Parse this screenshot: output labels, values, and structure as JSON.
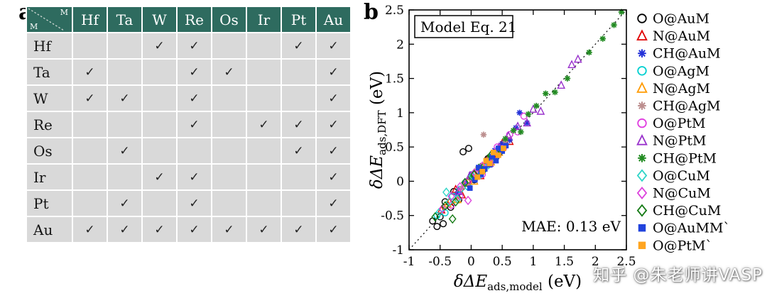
{
  "panels": {
    "a_label": "a",
    "b_label": "b"
  },
  "table": {
    "corner": {
      "top": "M",
      "bottom": "M"
    },
    "columns": [
      "Hf",
      "Ta",
      "W",
      "Re",
      "Os",
      "Ir",
      "Pt",
      "Au"
    ],
    "check_glyph": "✓",
    "header_bg": "#2e6b5f",
    "cell_bg": "#d9d9d9",
    "rows": [
      {
        "label": "Hf",
        "checks": [
          0,
          0,
          1,
          1,
          0,
          0,
          1,
          1
        ]
      },
      {
        "label": "Ta",
        "checks": [
          1,
          0,
          0,
          1,
          1,
          0,
          0,
          1
        ]
      },
      {
        "label": "W",
        "checks": [
          1,
          1,
          0,
          1,
          0,
          0,
          0,
          1
        ]
      },
      {
        "label": "Re",
        "checks": [
          0,
          0,
          0,
          1,
          0,
          1,
          1,
          1
        ]
      },
      {
        "label": "Os",
        "checks": [
          0,
          1,
          0,
          0,
          0,
          0,
          1,
          1
        ]
      },
      {
        "label": "Ir",
        "checks": [
          0,
          0,
          1,
          1,
          0,
          0,
          0,
          1
        ]
      },
      {
        "label": "Pt",
        "checks": [
          0,
          1,
          0,
          1,
          0,
          0,
          0,
          1
        ]
      },
      {
        "label": "Au",
        "checks": [
          1,
          1,
          1,
          1,
          1,
          1,
          1,
          1
        ]
      }
    ]
  },
  "chart_data": {
    "type": "scatter",
    "title_box": "Model Eq. 21",
    "annotation": "MAE: 0.13 eV",
    "xlabel": {
      "main": "δΔE",
      "sub": "ads,model",
      "unit": " (eV)"
    },
    "ylabel": {
      "main": "δΔE",
      "sub": "ads,DFT",
      "unit": " (eV)"
    },
    "xlim": [
      -1,
      2.5
    ],
    "ylim": [
      -1,
      2.5
    ],
    "xticks": [
      -1,
      -0.5,
      0,
      0.5,
      1,
      1.5,
      2,
      2.5
    ],
    "xtick_labels": [
      "-1",
      "-0.5",
      "0",
      "0.5",
      "1",
      "1.5",
      "2",
      "2.5"
    ],
    "yticks": [
      -1,
      -0.5,
      0,
      0.5,
      1,
      1.5,
      2,
      2.5
    ],
    "ytick_labels": [
      "-1",
      "-0.5",
      "0",
      "0.5",
      "1",
      "1.5",
      "2",
      "2.5"
    ],
    "parity_line": true,
    "legend_position": "right",
    "series": [
      {
        "name": "O@AuM",
        "marker": "circle-open",
        "color": "#000000",
        "points": [
          [
            -0.62,
            -0.58
          ],
          [
            -0.55,
            -0.66
          ],
          [
            -0.5,
            -0.52
          ],
          [
            -0.45,
            -0.62
          ],
          [
            -0.42,
            -0.3
          ],
          [
            -0.33,
            -0.38
          ],
          [
            -0.28,
            -0.15
          ],
          [
            -0.2,
            -0.27
          ],
          [
            -0.13,
            0.43
          ],
          [
            -0.04,
            0.48
          ],
          [
            0.05,
            0.02
          ],
          [
            0.14,
            0.18
          ],
          [
            0.27,
            0.33
          ],
          [
            0.4,
            0.35
          ]
        ]
      },
      {
        "name": "N@AuM",
        "marker": "triangle-open",
        "color": "#e00000",
        "points": [
          [
            -0.48,
            -0.42
          ],
          [
            -0.35,
            -0.3
          ],
          [
            -0.25,
            -0.12
          ],
          [
            -0.15,
            -0.2
          ],
          [
            -0.05,
            0.0
          ],
          [
            0.05,
            0.1
          ],
          [
            0.15,
            0.08
          ],
          [
            0.25,
            0.3
          ],
          [
            0.38,
            0.32
          ],
          [
            0.5,
            0.55
          ],
          [
            0.62,
            0.58
          ]
        ]
      },
      {
        "name": "CH@AuM",
        "marker": "asterisk",
        "color": "#2432d8",
        "points": [
          [
            -0.22,
            -0.18
          ],
          [
            -0.1,
            -0.02
          ],
          [
            0.0,
            0.1
          ],
          [
            0.12,
            0.08
          ],
          [
            0.25,
            0.3
          ],
          [
            0.38,
            0.45
          ],
          [
            0.5,
            0.55
          ],
          [
            0.62,
            0.6
          ],
          [
            0.72,
            0.78
          ],
          [
            0.78,
            1.0
          ],
          [
            0.9,
            0.85
          ]
        ]
      },
      {
        "name": "O@AgM",
        "marker": "circle-open",
        "color": "#00d0d0",
        "points": [
          [
            -0.55,
            -0.5
          ],
          [
            -0.42,
            -0.46
          ],
          [
            -0.3,
            -0.22
          ],
          [
            -0.18,
            -0.12
          ],
          [
            -0.05,
            -0.08
          ],
          [
            0.08,
            0.12
          ],
          [
            0.2,
            0.17
          ],
          [
            0.32,
            0.28
          ]
        ]
      },
      {
        "name": "N@AgM",
        "marker": "triangle-open",
        "color": "#ff9a00",
        "points": [
          [
            -0.38,
            -0.33
          ],
          [
            -0.22,
            -0.27
          ],
          [
            -0.08,
            -0.02
          ],
          [
            0.05,
            0.0
          ],
          [
            0.18,
            0.22
          ],
          [
            0.32,
            0.28
          ],
          [
            0.45,
            0.42
          ]
        ]
      },
      {
        "name": "CH@AgM",
        "marker": "asterisk",
        "color": "#bc8f8f",
        "points": [
          [
            -0.15,
            -0.1
          ],
          [
            -0.02,
            0.05
          ],
          [
            0.1,
            0.18
          ],
          [
            0.2,
            0.68
          ],
          [
            0.25,
            0.3
          ],
          [
            0.35,
            0.42
          ],
          [
            0.48,
            0.45
          ],
          [
            0.55,
            0.58
          ]
        ]
      },
      {
        "name": "O@PtM",
        "marker": "circle-open",
        "color": "#e03ee0",
        "points": [
          [
            -0.32,
            -0.35
          ],
          [
            -0.18,
            -0.22
          ],
          [
            -0.05,
            0.0
          ],
          [
            0.08,
            0.12
          ],
          [
            0.18,
            0.1
          ],
          [
            0.3,
            0.27
          ],
          [
            0.42,
            0.5
          ],
          [
            0.52,
            0.48
          ],
          [
            0.62,
            0.68
          ],
          [
            0.75,
            0.72
          ],
          [
            0.85,
            0.95
          ]
        ]
      },
      {
        "name": "N@PtM",
        "marker": "triangle-open",
        "color": "#9932cc",
        "points": [
          [
            -0.2,
            -0.15
          ],
          [
            -0.02,
            0.08
          ],
          [
            0.15,
            0.2
          ],
          [
            0.3,
            0.26
          ],
          [
            0.45,
            0.5
          ],
          [
            0.6,
            0.66
          ],
          [
            0.75,
            0.8
          ],
          [
            0.9,
            0.85
          ],
          [
            1.0,
            1.05
          ],
          [
            1.12,
            1.02
          ],
          [
            1.45,
            1.4
          ],
          [
            1.62,
            1.7
          ],
          [
            1.72,
            1.78
          ]
        ]
      },
      {
        "name": "CH@PtM",
        "marker": "asterisk",
        "color": "#228b22",
        "points": [
          [
            0.0,
            0.06
          ],
          [
            0.15,
            0.22
          ],
          [
            0.3,
            0.36
          ],
          [
            0.45,
            0.4
          ],
          [
            0.55,
            0.62
          ],
          [
            0.68,
            0.74
          ],
          [
            0.8,
            0.72
          ],
          [
            0.92,
            0.98
          ],
          [
            1.05,
            1.1
          ],
          [
            1.2,
            1.28
          ],
          [
            1.35,
            1.3
          ],
          [
            1.55,
            1.5
          ],
          [
            1.9,
            1.88
          ],
          [
            2.12,
            2.08
          ],
          [
            2.3,
            2.28
          ],
          [
            2.42,
            2.47
          ]
        ]
      },
      {
        "name": "O@CuM",
        "marker": "diamond-open",
        "color": "#30d5c8",
        "points": [
          [
            -0.52,
            -0.46
          ],
          [
            -0.4,
            -0.16
          ],
          [
            -0.35,
            -0.3
          ],
          [
            -0.22,
            -0.26
          ],
          [
            -0.1,
            -0.02
          ],
          [
            0.02,
            0.08
          ],
          [
            0.15,
            0.1
          ],
          [
            0.28,
            0.24
          ]
        ]
      },
      {
        "name": "N@CuM",
        "marker": "diamond-open",
        "color": "#dd44dd",
        "points": [
          [
            -0.46,
            -0.4
          ],
          [
            -0.32,
            -0.22
          ],
          [
            -0.18,
            -0.08
          ],
          [
            -0.05,
            -0.28
          ],
          [
            0.05,
            0.12
          ],
          [
            0.18,
            0.22
          ],
          [
            0.3,
            0.26
          ],
          [
            0.45,
            0.4
          ]
        ]
      },
      {
        "name": "CH@CuM",
        "marker": "diamond-open",
        "color": "#147a14",
        "points": [
          [
            -0.58,
            -0.52
          ],
          [
            -0.42,
            -0.36
          ],
          [
            -0.3,
            -0.55
          ],
          [
            -0.25,
            -0.3
          ],
          [
            -0.1,
            -0.02
          ],
          [
            0.05,
            0.1
          ],
          [
            0.18,
            0.14
          ],
          [
            0.32,
            0.38
          ],
          [
            0.48,
            0.44
          ]
        ]
      },
      {
        "name": "O@AuMM`",
        "marker": "square-filled",
        "color": "#2244dd",
        "points": [
          [
            -0.02,
            -0.1
          ],
          [
            0.06,
            0.02
          ],
          [
            0.12,
            0.2
          ],
          [
            0.16,
            0.1
          ],
          [
            0.22,
            0.18
          ],
          [
            0.26,
            0.3
          ],
          [
            0.3,
            0.24
          ],
          [
            0.34,
            0.36
          ],
          [
            0.4,
            0.3
          ],
          [
            0.44,
            0.48
          ],
          [
            0.5,
            0.44
          ],
          [
            0.56,
            0.52
          ]
        ]
      },
      {
        "name": "O@PtM`",
        "marker": "square-filled",
        "color": "#ffa520",
        "points": [
          [
            0.1,
            0.06
          ],
          [
            0.18,
            0.14
          ],
          [
            0.24,
            0.3
          ],
          [
            0.3,
            0.26
          ],
          [
            0.36,
            0.42
          ],
          [
            0.44,
            0.38
          ],
          [
            0.52,
            0.48
          ]
        ]
      }
    ]
  },
  "watermark": "知乎 @朱老师讲VASP"
}
